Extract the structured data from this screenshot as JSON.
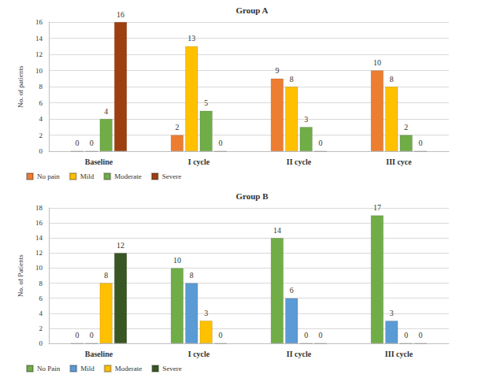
{
  "chart_data": [
    {
      "type": "bar",
      "title": "Group A",
      "y_label": "No. of patients",
      "categories": [
        "Baseline",
        "I cycle",
        "II cycle",
        "III cyce"
      ],
      "series": [
        {
          "name": "No pain",
          "color": "#ed7d31",
          "values": [
            0,
            2,
            9,
            10
          ]
        },
        {
          "name": "Mild",
          "color": "#ffc000",
          "values": [
            0,
            13,
            8,
            8
          ]
        },
        {
          "name": "Moderate",
          "color": "#70ad47",
          "values": [
            4,
            5,
            3,
            2
          ]
        },
        {
          "name": "Severe",
          "color": "#9e3f0f",
          "values": [
            16,
            0,
            0,
            0
          ]
        }
      ],
      "ylim": [
        0,
        16
      ],
      "yticks": [
        0,
        2,
        4,
        6,
        8,
        10,
        12,
        14,
        16
      ],
      "grid": true,
      "legend": "bottom",
      "data_labels": true
    },
    {
      "type": "bar",
      "title": "Group B",
      "y_label": "No. of Patients",
      "categories": [
        "Baseline",
        "I cycle",
        "II cycle",
        "III cycle"
      ],
      "series": [
        {
          "name": "No Pain",
          "color": "#70ad47",
          "values": [
            0,
            10,
            14,
            17
          ]
        },
        {
          "name": "Mild",
          "color": "#5b9bd5",
          "values": [
            0,
            8,
            6,
            3
          ]
        },
        {
          "name": "Moderate",
          "color": "#ffc000",
          "values": [
            8,
            3,
            0,
            0
          ]
        },
        {
          "name": "Severe",
          "color": "#385723",
          "values": [
            12,
            0,
            0,
            0
          ]
        }
      ],
      "ylim": [
        0,
        18
      ],
      "yticks": [
        0,
        2,
        4,
        6,
        8,
        10,
        12,
        14,
        16,
        18
      ],
      "grid": true,
      "legend": "bottom",
      "data_labels": true
    }
  ]
}
